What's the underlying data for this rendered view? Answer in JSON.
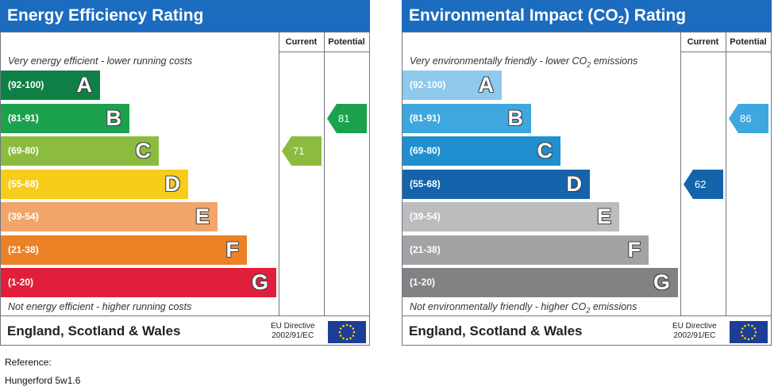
{
  "chart_data": [
    {
      "type": "bar",
      "title": "Energy Efficiency Rating",
      "column_headers": [
        "Current",
        "Potential"
      ],
      "top_caption": "Very energy efficient - lower running costs",
      "bottom_caption": "Not energy efficient - higher running costs",
      "bands": [
        {
          "range": "(92-100)",
          "letter": "A",
          "color": "#0e8046"
        },
        {
          "range": "(81-91)",
          "letter": "B",
          "color": "#1ca14d"
        },
        {
          "range": "(69-80)",
          "letter": "C",
          "color": "#8cbc3f"
        },
        {
          "range": "(55-68)",
          "letter": "D",
          "color": "#f6cd1b"
        },
        {
          "range": "(39-54)",
          "letter": "E",
          "color": "#f2a56a"
        },
        {
          "range": "(21-38)",
          "letter": "F",
          "color": "#ec8126"
        },
        {
          "range": "(1-20)",
          "letter": "G",
          "color": "#e21f3a"
        }
      ],
      "current": {
        "value": "71",
        "band_index": 2,
        "color": "#8cbc3f"
      },
      "potential": {
        "value": "81",
        "band_index": 1,
        "color": "#1ca14d"
      },
      "footer": {
        "country": "England, Scotland & Wales",
        "directive_line1": "EU Directive",
        "directive_line2": "2002/91/EC"
      }
    },
    {
      "type": "bar",
      "title_pre": "Environmental Impact (CO",
      "title_sub": "2",
      "title_post": ") Rating",
      "column_headers": [
        "Current",
        "Potential"
      ],
      "top_caption_pre": "Very environmentally friendly - lower CO",
      "top_caption_sub": "2",
      "top_caption_post": " emissions",
      "bottom_caption_pre": "Not environmentally friendly - higher CO",
      "bottom_caption_sub": "2",
      "bottom_caption_post": " emissions",
      "bands": [
        {
          "range": "(92-100)",
          "letter": "A",
          "color": "#8fc9ec"
        },
        {
          "range": "(81-91)",
          "letter": "B",
          "color": "#3ea7df"
        },
        {
          "range": "(69-80)",
          "letter": "C",
          "color": "#1f8fd0"
        },
        {
          "range": "(55-68)",
          "letter": "D",
          "color": "#1564ab"
        },
        {
          "range": "(39-54)",
          "letter": "E",
          "color": "#bbbcbe"
        },
        {
          "range": "(21-38)",
          "letter": "F",
          "color": "#a2a3a5"
        },
        {
          "range": "(1-20)",
          "letter": "G",
          "color": "#818284"
        }
      ],
      "current": {
        "value": "62",
        "band_index": 3,
        "color": "#1564ab"
      },
      "potential": {
        "value": "86",
        "band_index": 1,
        "color": "#3ea7df"
      },
      "footer": {
        "country": "England, Scotland & Wales",
        "directive_line1": "EU Directive",
        "directive_line2": "2002/91/EC"
      }
    }
  ],
  "reference": {
    "label": "Reference:",
    "value": "Hungerford 5w1.6"
  }
}
